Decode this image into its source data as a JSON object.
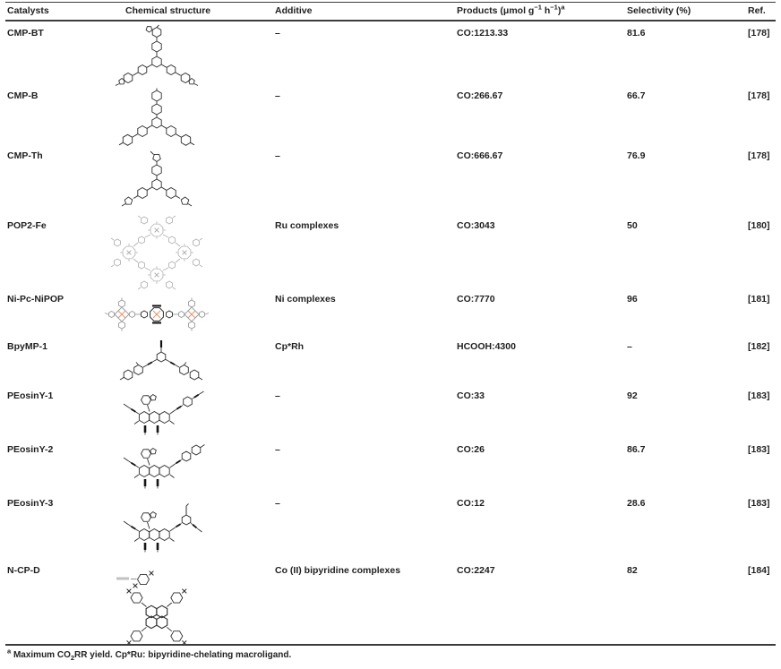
{
  "table": {
    "columns": [
      {
        "label": "Catalysts"
      },
      {
        "label": "Chemical structure"
      },
      {
        "label": "Additive"
      },
      {
        "label": "Products (μmol g−1 h−1)a",
        "label_html": "Products (μmol g<sup>−1</sup> h<sup>−1</sup>)<sup>a</sup>"
      },
      {
        "label": "Selectivity (%)"
      },
      {
        "label": "Ref."
      }
    ],
    "rows": [
      {
        "catalyst": "CMP-BT",
        "structure": "cmp-bt",
        "additive": "–",
        "products": "CO:1213.33",
        "selectivity": "81.6",
        "ref": "[178]"
      },
      {
        "catalyst": "CMP-B",
        "structure": "cmp-b",
        "additive": "–",
        "products": "CO:266.67",
        "selectivity": "66.7",
        "ref": "[178]"
      },
      {
        "catalyst": "CMP-Th",
        "structure": "cmp-th",
        "additive": "–",
        "products": "CO:666.67",
        "selectivity": "76.9",
        "ref": "[178]"
      },
      {
        "catalyst": "POP2-Fe",
        "structure": "pop2-fe",
        "additive": "Ru complexes",
        "products": "CO:3043",
        "selectivity": "50",
        "ref": "[180]"
      },
      {
        "catalyst": "Ni-Pc-NiPOP",
        "structure": "ni-pc-nipop",
        "additive": "Ni complexes",
        "products": "CO:7770",
        "selectivity": "96",
        "ref": "[181]"
      },
      {
        "catalyst": "BpyMP-1",
        "structure": "bpymp-1",
        "additive": "Cp*Rh",
        "products": "HCOOH:4300",
        "selectivity": "–",
        "ref": "[182]"
      },
      {
        "catalyst": "PEosinY-1",
        "structure": "peosiny-1",
        "additive": "–",
        "products": "CO:33",
        "selectivity": "92",
        "ref": "[183]"
      },
      {
        "catalyst": "PEosinY-2",
        "structure": "peosiny-2",
        "additive": "–",
        "products": "CO:26",
        "selectivity": "86.7",
        "ref": "[183]"
      },
      {
        "catalyst": "PEosinY-3",
        "structure": "peosiny-3",
        "additive": "–",
        "products": "CO:12",
        "selectivity": "28.6",
        "ref": "[183]"
      },
      {
        "catalyst": "N-CP-D",
        "structure": "n-cp-d",
        "additive": "Co (II) bipyridine complexes",
        "products": "CO:2247",
        "selectivity": "82",
        "ref": "[184]"
      }
    ],
    "footnote": "a Maximum CO2RR yield. Cp*Ru: bipyridine-chelating macroligand.",
    "footnote_html": "<sup>a</sup> Maximum CO<sub>2</sub>RR yield. Cp*Ru: bipyridine-chelating macroligand."
  },
  "colors": {
    "text": "#1f1f1f",
    "rule": "#3c3c3c",
    "structure_ink": "#2c2c2c",
    "structure_gray": "#b3b3b3",
    "metal_orange": "#e5946a"
  }
}
